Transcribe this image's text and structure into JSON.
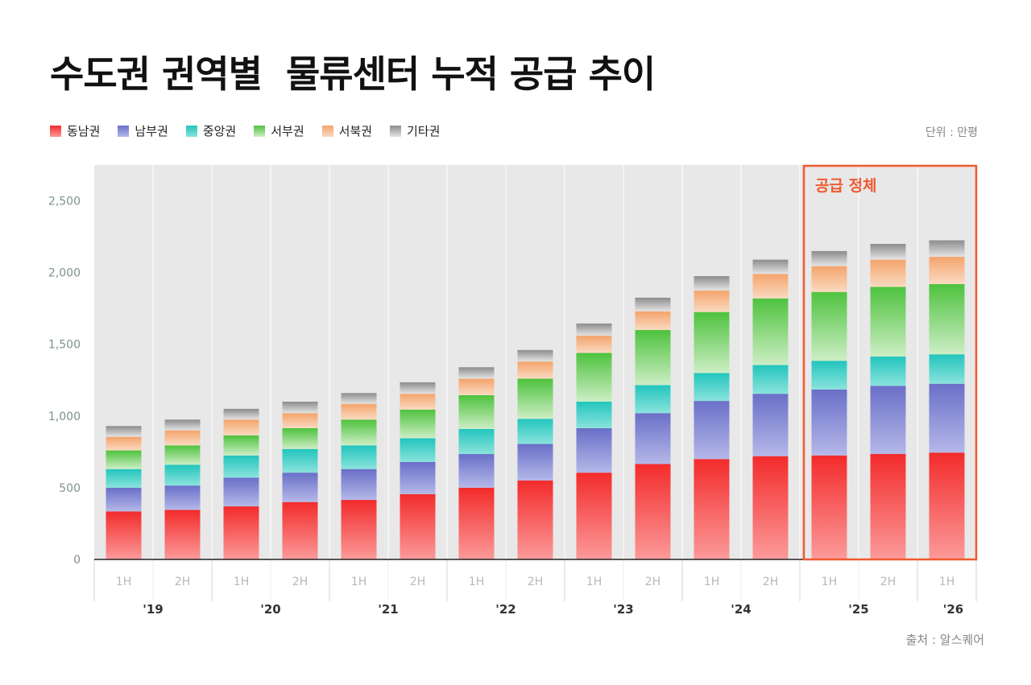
{
  "title": "수도권 권역별  물류센터 누적 공급 추이",
  "unit_label": "단위 : 만평",
  "source": "출처 : 알스퀘어",
  "chart_data": {
    "type": "bar",
    "stacked": true,
    "title": "수도권 권역별  물류센터 누적 공급 추이",
    "ylim": [
      0,
      2750
    ],
    "yticks": [
      0,
      500,
      1000,
      1500,
      2000,
      2500
    ],
    "ytick_labels": [
      "0",
      "500",
      "1,000",
      "1,500",
      "2,000",
      "2,500"
    ],
    "categories": [
      "1H",
      "2H",
      "1H",
      "2H",
      "1H",
      "2H",
      "1H",
      "2H",
      "1H",
      "2H",
      "1H",
      "2H",
      "1H",
      "2H",
      "1H"
    ],
    "year_labels": [
      "'19",
      "'20",
      "'21",
      "'22",
      "'23",
      "'24",
      "'25",
      "'26"
    ],
    "legend_placement": "top-left",
    "grid": false,
    "series": [
      {
        "name": "동남권",
        "color": "#f32b2b",
        "color_light": "#fc9a9a",
        "values": [
          335,
          345,
          370,
          400,
          415,
          455,
          500,
          550,
          605,
          665,
          700,
          720,
          725,
          735,
          745
        ]
      },
      {
        "name": "남부권",
        "color": "#6a6fc8",
        "color_light": "#b5b8e8",
        "values": [
          165,
          170,
          200,
          205,
          215,
          225,
          235,
          255,
          310,
          355,
          405,
          435,
          460,
          475,
          480
        ]
      },
      {
        "name": "중앙권",
        "color": "#22c5bd",
        "color_light": "#8ae3dc",
        "values": [
          130,
          145,
          155,
          165,
          165,
          165,
          175,
          175,
          185,
          195,
          195,
          200,
          200,
          205,
          205
        ]
      },
      {
        "name": "서부권",
        "color": "#4ec23e",
        "color_light": "#cdeec5",
        "values": [
          130,
          135,
          140,
          145,
          180,
          200,
          235,
          280,
          340,
          385,
          425,
          465,
          480,
          485,
          490
        ]
      },
      {
        "name": "서북권",
        "color": "#f4a46c",
        "color_light": "#fadac0",
        "values": [
          95,
          105,
          110,
          105,
          110,
          110,
          115,
          120,
          120,
          130,
          150,
          170,
          180,
          190,
          190
        ]
      },
      {
        "name": "기타권",
        "color": "#8c8c8c",
        "color_light": "#e4e4e4",
        "values": [
          75,
          75,
          75,
          80,
          75,
          80,
          80,
          80,
          85,
          95,
          100,
          100,
          105,
          110,
          115
        ]
      }
    ],
    "annotation": {
      "label": "공급 정체",
      "from_index": 12,
      "to_index": 14,
      "color": "#f05a30"
    }
  }
}
